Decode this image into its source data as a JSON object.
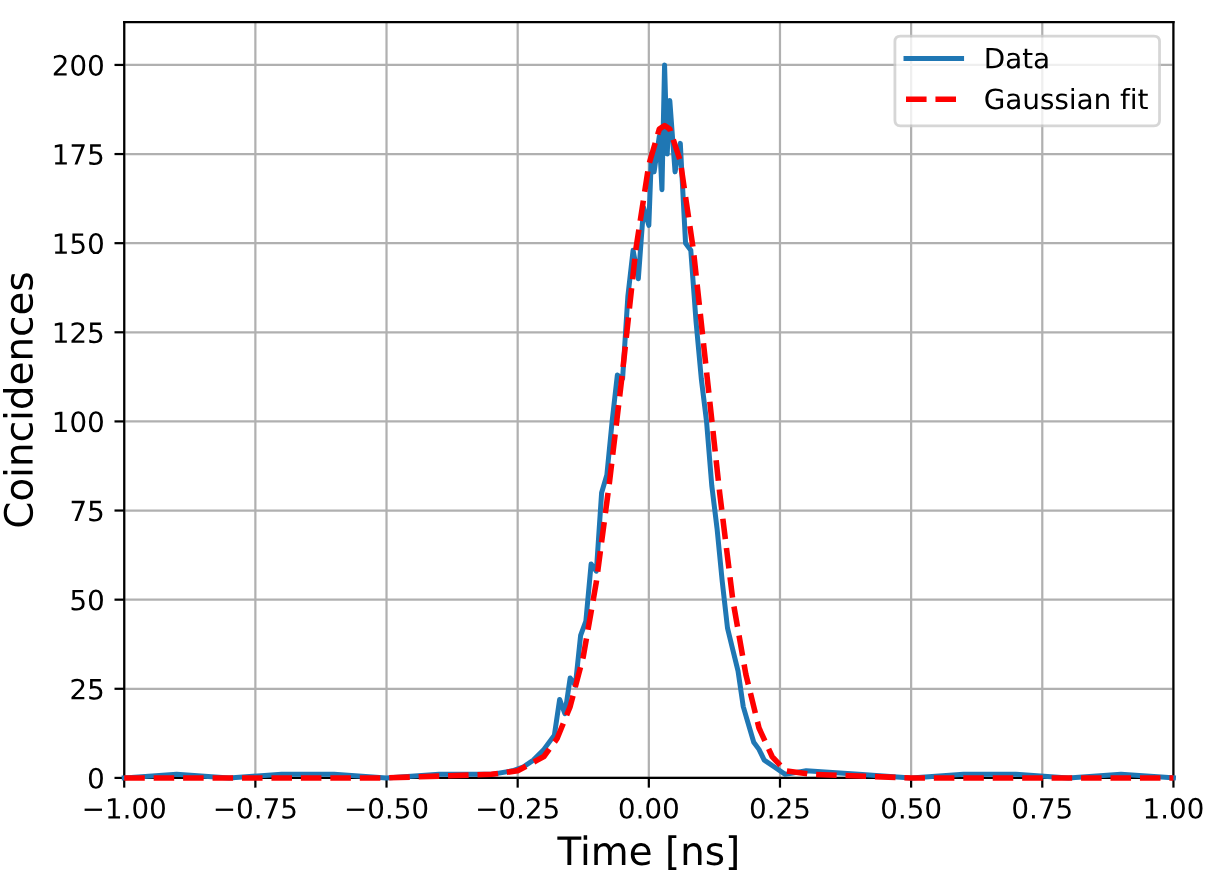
{
  "chart_data": {
    "type": "line",
    "xlabel": "Time [ns]",
    "ylabel": "Coincidences",
    "series": [
      {
        "name": "Data",
        "color": "#1f77b4",
        "line_style": "solid",
        "x": [
          -1,
          -0.9,
          -0.8,
          -0.7,
          -0.6,
          -0.5,
          -0.4,
          -0.3,
          -0.26,
          -0.24,
          -0.22,
          -0.2,
          -0.18,
          -0.17,
          -0.16,
          -0.15,
          -0.14,
          -0.13,
          -0.12,
          -0.11,
          -0.1,
          -0.09,
          -0.08,
          -0.07,
          -0.06,
          -0.05,
          -0.04,
          -0.03,
          -0.02,
          -0.01,
          0,
          0.005,
          0.01,
          0.02,
          0.025,
          0.03,
          0.035,
          0.04,
          0.05,
          0.06,
          0.07,
          0.08,
          0.09,
          0.1,
          0.11,
          0.12,
          0.13,
          0.14,
          0.15,
          0.16,
          0.17,
          0.18,
          0.19,
          0.2,
          0.21,
          0.22,
          0.24,
          0.26,
          0.3,
          0.4,
          0.5,
          0.6,
          0.7,
          0.8,
          0.9,
          1
        ],
        "values": [
          0,
          1,
          0,
          1,
          1,
          0,
          1,
          1,
          2,
          3,
          5,
          8,
          12,
          22,
          18,
          28,
          26,
          40,
          44,
          60,
          58,
          80,
          85,
          100,
          113,
          112,
          135,
          148,
          140,
          160,
          155,
          175,
          170,
          180,
          165,
          200,
          175,
          190,
          170,
          178,
          150,
          148,
          128,
          112,
          100,
          82,
          70,
          55,
          42,
          36,
          30,
          20,
          15,
          10,
          8,
          5,
          3,
          1,
          2,
          1,
          0,
          1,
          1,
          0,
          1,
          0
        ]
      },
      {
        "name": "Gaussian fit",
        "color": "#ff0000",
        "line_style": "dashed",
        "x": [
          -1,
          -0.5,
          -0.3,
          -0.25,
          -0.2,
          -0.175,
          -0.15,
          -0.125,
          -0.1,
          -0.075,
          -0.05,
          -0.025,
          0,
          0.02,
          0.03,
          0.04,
          0.06,
          0.085,
          0.11,
          0.135,
          0.16,
          0.185,
          0.21,
          0.235,
          0.26,
          0.31,
          0.5,
          1
        ],
        "values": [
          0,
          0,
          1,
          2,
          6,
          11,
          20,
          34,
          55,
          83,
          114,
          148,
          172,
          182,
          183,
          182,
          173,
          148,
          114,
          80,
          50,
          29,
          14,
          6,
          2,
          1,
          0,
          0
        ]
      }
    ],
    "xlim": [
      -1,
      1
    ],
    "xticks": [
      {
        "value": -1,
        "label": "−1.00"
      },
      {
        "value": -0.75,
        "label": "−0.75"
      },
      {
        "value": -0.5,
        "label": "−0.50"
      },
      {
        "value": -0.25,
        "label": "−0.25"
      },
      {
        "value": 0,
        "label": "0.00"
      },
      {
        "value": 0.25,
        "label": "0.25"
      },
      {
        "value": 0.5,
        "label": "0.50"
      },
      {
        "value": 0.75,
        "label": "0.75"
      },
      {
        "value": 1,
        "label": "1.00"
      }
    ],
    "ylim": [
      0,
      212
    ],
    "yticks": [
      0,
      25,
      50,
      75,
      100,
      125,
      150,
      175,
      200
    ],
    "grid": true,
    "legend": "top right"
  }
}
